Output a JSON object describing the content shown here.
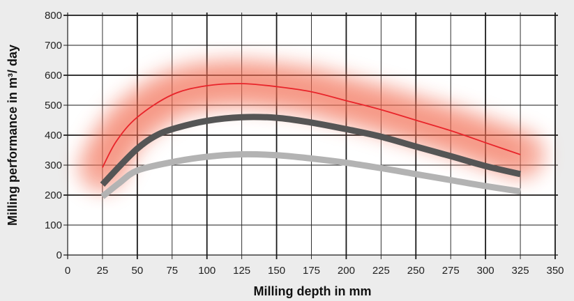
{
  "chart_data": {
    "type": "line",
    "xlabel": "Milling depth in mm",
    "ylabel": "Milling performance in m³/ day",
    "xlim": [
      0,
      350
    ],
    "ylim": [
      0,
      800
    ],
    "xticks": [
      0,
      25,
      50,
      75,
      100,
      125,
      150,
      175,
      200,
      225,
      250,
      275,
      300,
      325,
      350
    ],
    "yticks": [
      0,
      100,
      200,
      300,
      400,
      500,
      600,
      700,
      800
    ],
    "grid": true,
    "series": [
      {
        "color": "#e8242a",
        "band_color": "#f26a4f",
        "style": "thin line with blurred band",
        "x": [
          25,
          35,
          50,
          75,
          100,
          125,
          150,
          175,
          200,
          225,
          250,
          275,
          300,
          325
        ],
        "y": [
          292,
          380,
          460,
          535,
          565,
          572,
          562,
          545,
          515,
          485,
          450,
          415,
          375,
          335
        ]
      },
      {
        "color": "#555555",
        "style": "thick line",
        "x": [
          25,
          37,
          50,
          62,
          75,
          100,
          125,
          150,
          175,
          200,
          225,
          250,
          275,
          300,
          325
        ],
        "y": [
          235,
          295,
          355,
          395,
          420,
          448,
          460,
          458,
          442,
          420,
          395,
          362,
          330,
          297,
          270
        ]
      },
      {
        "color": "#b3b3b3",
        "style": "thick line",
        "x": [
          25,
          37,
          50,
          75,
          100,
          125,
          150,
          175,
          200,
          225,
          250,
          275,
          300,
          325
        ],
        "y": [
          195,
          240,
          282,
          310,
          328,
          336,
          333,
          322,
          308,
          290,
          270,
          250,
          230,
          212
        ]
      }
    ]
  }
}
